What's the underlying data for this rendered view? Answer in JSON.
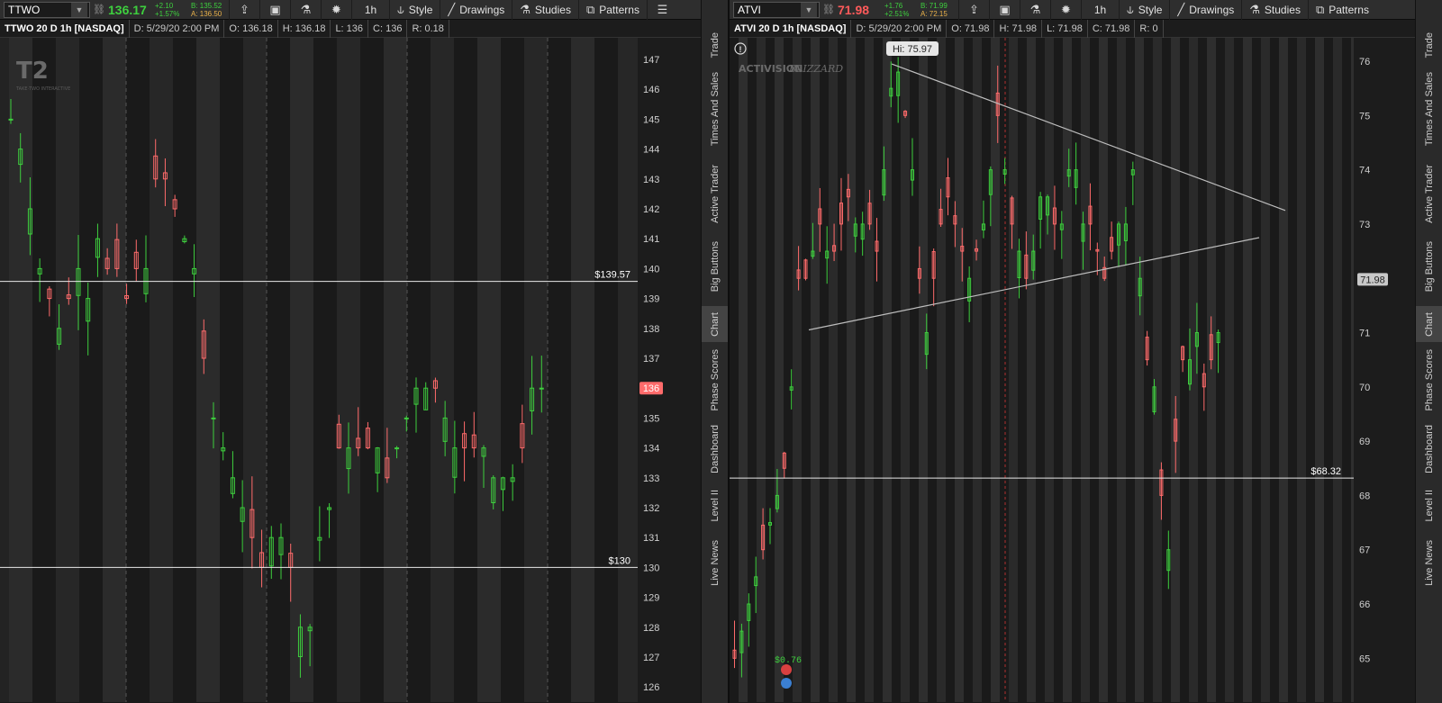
{
  "left": {
    "symbol": "TTWO",
    "last": "136.17",
    "change": "+2.10",
    "change_pct": "+1.57%",
    "bid": "B: 135.52",
    "ask": "A: 136.50",
    "timeframe": "1h",
    "style_label": "Style",
    "drawings_label": "Drawings",
    "studies_label": "Studies",
    "patterns_label": "Patterns",
    "info": {
      "title": "TTWO 20 D 1h [NASDAQ]",
      "date": "D: 5/29/20 2:00 PM",
      "open": "O: 136.18",
      "high": "H: 136.18",
      "low": "L: 136",
      "close": "C: 136",
      "range": "R: 0.18"
    },
    "logo": {
      "mark": "T2",
      "sub": "TAKE·TWO INTERACTIVE"
    },
    "axis_labels": [
      "147",
      "146",
      "145",
      "144",
      "143",
      "142",
      "141",
      "140",
      "139",
      "138",
      "137",
      "136",
      "135",
      "134",
      "133",
      "132",
      "131",
      "130",
      "129",
      "128",
      "127",
      "126"
    ],
    "price_tag": "136",
    "levels": [
      {
        "value": 139.57,
        "label": "$139.57"
      },
      {
        "value": 130,
        "label": "$130"
      }
    ],
    "colors": {
      "up": "#3ecf3e",
      "down": "#ff6b6b",
      "tag": "#ff6b6b"
    }
  },
  "right": {
    "symbol": "ATVI",
    "last": "71.98",
    "change": "+1.76",
    "change_pct": "+2.51%",
    "bid": "B: 71.99",
    "ask": "A: 72.15",
    "timeframe": "1h",
    "style_label": "Style",
    "drawings_label": "Drawings",
    "studies_label": "Studies",
    "patterns_label": "Patterns",
    "info": {
      "title": "ATVI 20 D 1h [NASDAQ]",
      "date": "D: 5/29/20 2:00 PM",
      "open": "O: 71.98",
      "high": "H: 71.98",
      "low": "L: 71.98",
      "close": "C: 71.98",
      "range": "R: 0"
    },
    "logo": {
      "mark1": "ACTIVISION",
      "mark2": "BLIZZARD"
    },
    "hi_bubble": "Hi: 75.97",
    "axis_labels": [
      "76",
      "75",
      "74",
      "73",
      "72",
      "71",
      "70",
      "69",
      "68",
      "67",
      "66",
      "65"
    ],
    "price_tag": "71.98",
    "levels": [
      {
        "value": 68.32,
        "label": "$68.32"
      }
    ],
    "dividend_label": "$0.76",
    "colors": {
      "up": "#3ecf3e",
      "down": "#ff6b6b",
      "tag": "#c8c8c8"
    }
  },
  "side_tabs": [
    "Trade",
    "Times And Sales",
    "Active Trader",
    "Big Buttons",
    "Chart",
    "Phase Scores",
    "Dashboard",
    "Level II",
    "Live News"
  ],
  "active_side_tab": "Chart",
  "icons": [
    "chain-link-icon",
    "share-icon",
    "camera-icon",
    "flask-icon",
    "gear-icon",
    "style-icon",
    "pencil-icon",
    "studies-flask-icon",
    "patterns-icon",
    "menu-icon",
    "drawing-tool-icon",
    "alert-icon"
  ]
}
